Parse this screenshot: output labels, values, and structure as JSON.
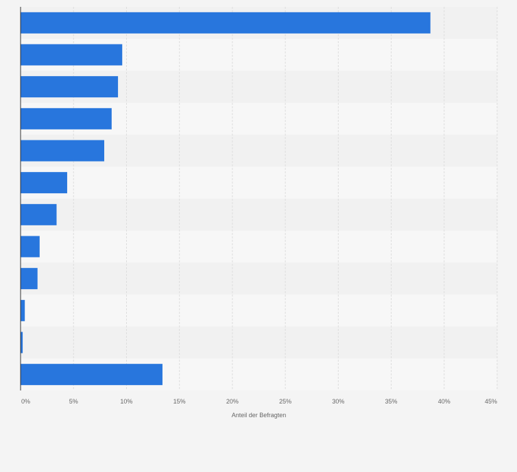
{
  "chart_data": {
    "type": "bar",
    "orientation": "horizontal",
    "categories": [
      "",
      "",
      "",
      "",
      "",
      "",
      "",
      "",
      "",
      "",
      "",
      ""
    ],
    "values": [
      38.7,
      9.6,
      9.2,
      8.6,
      7.9,
      4.4,
      3.4,
      1.8,
      1.6,
      0.4,
      0.2,
      13.4
    ],
    "title": "",
    "xlabel": "Anteil der Befragten",
    "ylabel": "",
    "xlim": [
      0,
      45
    ],
    "xticks": [
      "0%",
      "5%",
      "10%",
      "15%",
      "20%",
      "25%",
      "30%",
      "35%",
      "40%",
      "45%"
    ],
    "grid": true,
    "legend": "none",
    "colors": {
      "bar": "#2876dd",
      "band_light": "#f7f7f7",
      "band_dark": "#f1f1f1",
      "grid": "#dddddd",
      "axis": "#333333"
    }
  }
}
